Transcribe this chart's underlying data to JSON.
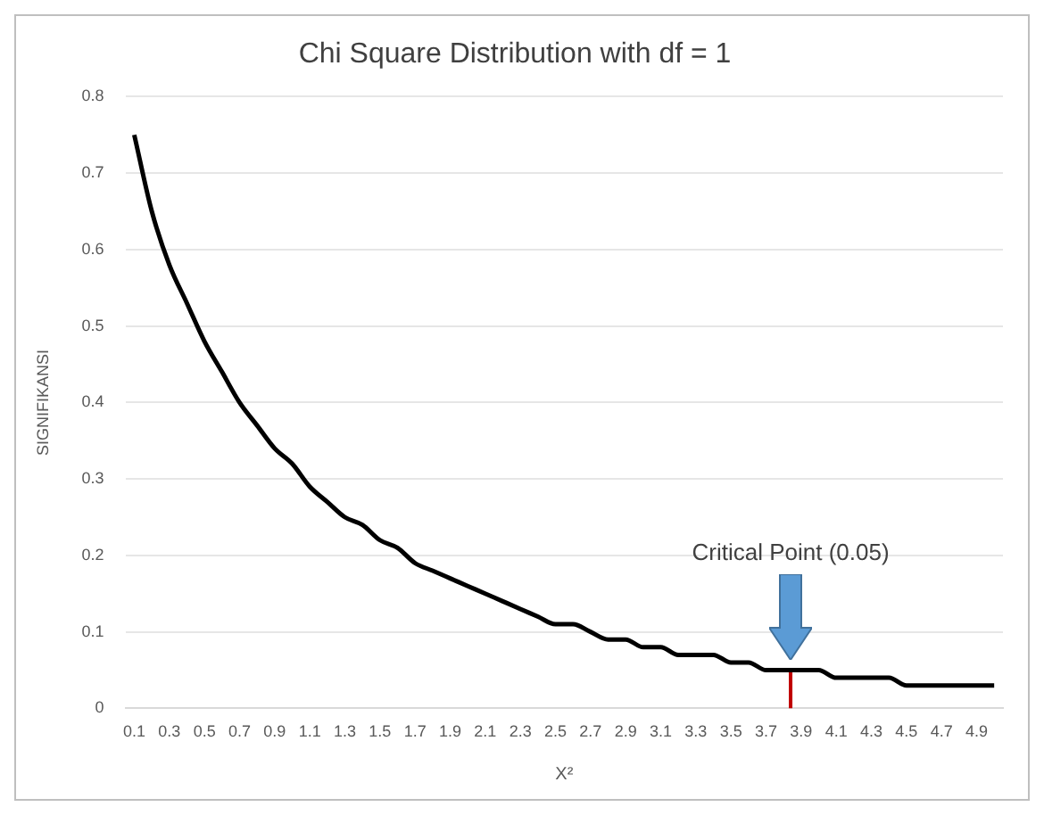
{
  "chart_data": {
    "type": "line",
    "title": "Chi Square Distribution with df = 1",
    "xlabel": "X²",
    "ylabel": "SIGNIFIKANSI",
    "x": [
      0.1,
      0.2,
      0.3,
      0.4,
      0.5,
      0.6,
      0.7,
      0.8,
      0.9,
      1.0,
      1.1,
      1.2,
      1.3,
      1.4,
      1.5,
      1.6,
      1.7,
      1.8,
      1.9,
      2.0,
      2.1,
      2.2,
      2.3,
      2.4,
      2.5,
      2.6,
      2.7,
      2.8,
      2.9,
      3.0,
      3.1,
      3.2,
      3.3,
      3.4,
      3.5,
      3.6,
      3.7,
      3.8,
      3.9,
      4.0,
      4.1,
      4.2,
      4.3,
      4.4,
      4.5,
      4.6,
      4.7,
      4.8,
      4.9,
      5.0
    ],
    "series": [
      {
        "color": "#000000",
        "values": [
          0.75,
          0.65,
          0.58,
          0.53,
          0.48,
          0.44,
          0.4,
          0.37,
          0.34,
          0.32,
          0.29,
          0.27,
          0.25,
          0.24,
          0.22,
          0.21,
          0.19,
          0.18,
          0.17,
          0.16,
          0.15,
          0.14,
          0.13,
          0.12,
          0.11,
          0.11,
          0.1,
          0.09,
          0.09,
          0.08,
          0.08,
          0.07,
          0.07,
          0.07,
          0.06,
          0.06,
          0.05,
          0.05,
          0.05,
          0.05,
          0.04,
          0.04,
          0.04,
          0.04,
          0.03,
          0.03,
          0.03,
          0.03,
          0.03,
          0.03
        ]
      },
      {
        "color": "#c00000",
        "x": [
          3.84,
          3.84
        ],
        "values": [
          0,
          0.05
        ]
      }
    ],
    "xlim": [
      0.05,
      5.05
    ],
    "xticks": [
      0.1,
      0.3,
      0.5,
      0.7,
      0.9,
      1.1,
      1.3,
      1.5,
      1.7,
      1.9,
      2.1,
      2.3,
      2.5,
      2.7,
      2.9,
      3.1,
      3.3,
      3.5,
      3.7,
      3.9,
      4.1,
      4.3,
      4.5,
      4.7,
      4.9
    ],
    "ylim": [
      0,
      0.8
    ],
    "yticks": [
      0,
      0.1,
      0.2,
      0.3,
      0.4,
      0.5,
      0.6,
      0.7,
      0.8
    ],
    "grid": "y",
    "legend": false,
    "marker": "none",
    "line_style": "solid",
    "annotations": [
      "Critical Point (0.05)"
    ]
  }
}
